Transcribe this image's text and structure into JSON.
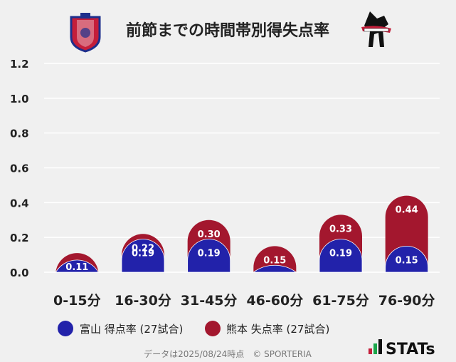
{
  "chart_data": {
    "type": "bar",
    "title": "前節までの時間帯別得失点率",
    "categories": [
      "0-15分",
      "16-30分",
      "31-45分",
      "46-60分",
      "61-75分",
      "76-90分"
    ],
    "series": [
      {
        "name": "富山 得点率 (27試合)",
        "color": "#2222aa",
        "values": [
          0.07,
          0.19,
          0.19,
          0.04,
          0.19,
          0.15
        ],
        "labels": [
          "",
          "0.19",
          "0.19",
          "",
          "0.19",
          "0.15"
        ]
      },
      {
        "name": "熊本 失点率 (27試合)",
        "color": "#a3172e",
        "values": [
          0.11,
          0.22,
          0.3,
          0.15,
          0.33,
          0.44
        ],
        "labels": [
          "0.11",
          "0.22",
          "0.30",
          "0.15",
          "0.33",
          "0.44"
        ]
      }
    ],
    "ylim": [
      0,
      1.2
    ],
    "yticks": [
      "0.0",
      "0.2",
      "0.4",
      "0.6",
      "0.8",
      "1.0",
      "1.2"
    ],
    "xlabel": "",
    "ylabel": "",
    "grid": true,
    "legend_position": "bottom-left",
    "footer": "データは2025/08/24時点　© SPORTERIA",
    "brand": "STATs",
    "team_left_logo": "富山 crest",
    "team_right_logo": "熊本 crest"
  }
}
